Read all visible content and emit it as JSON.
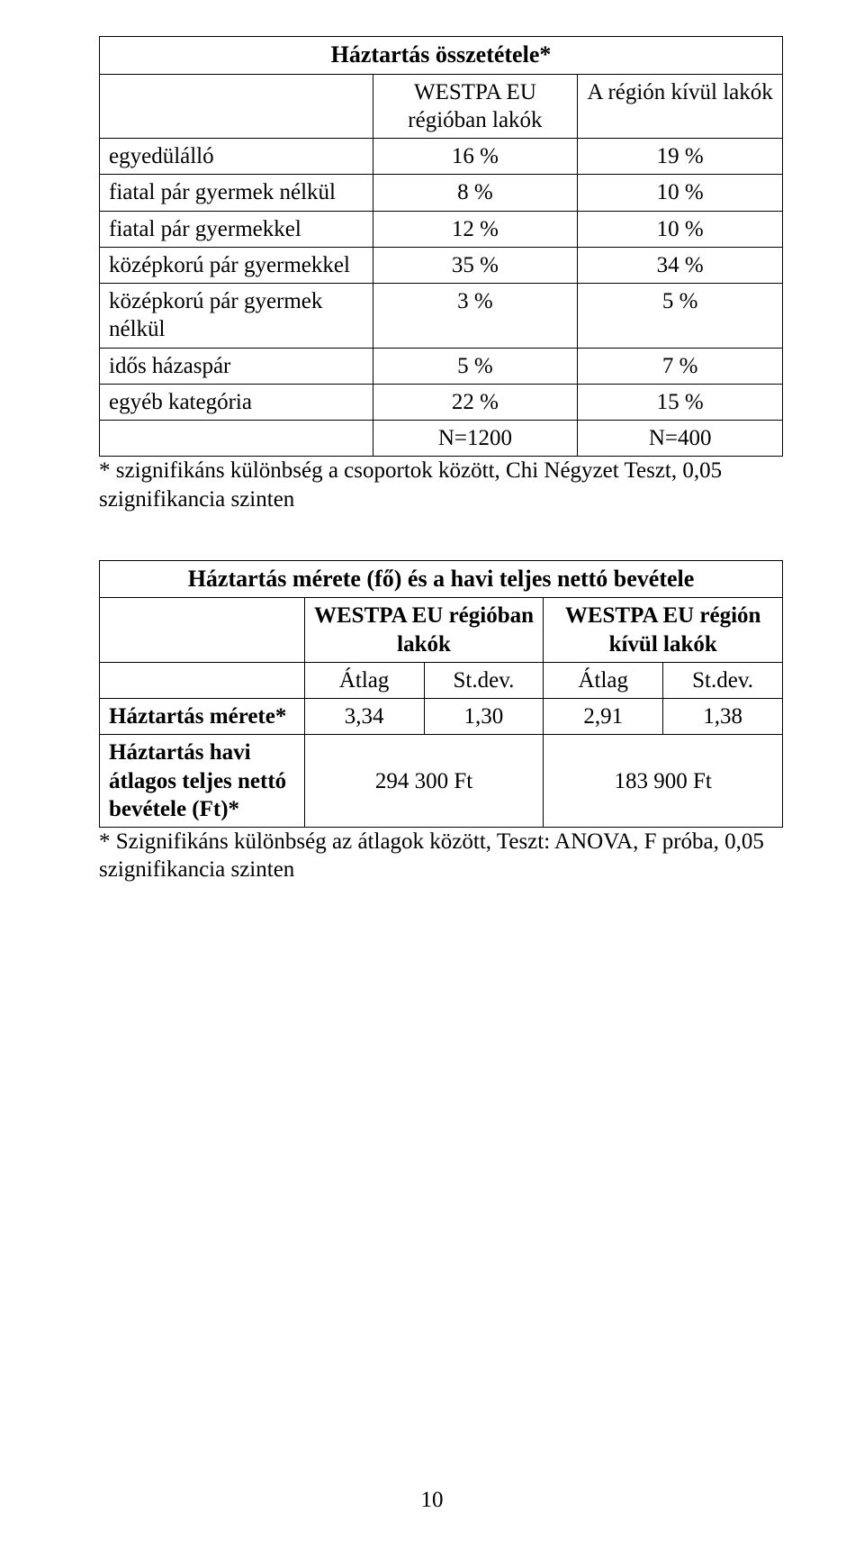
{
  "table1": {
    "title": "Háztartás összetétele*",
    "headers": {
      "col2": "WESTPA EU régióban lakók",
      "col3": "A régión kívül lakók"
    },
    "rows": [
      {
        "label": "egyedülálló",
        "v1": "16 %",
        "v2": "19 %"
      },
      {
        "label": "fiatal pár gyermek nélkül",
        "v1": "8 %",
        "v2": "10 %"
      },
      {
        "label": "fiatal pár gyermekkel",
        "v1": "12 %",
        "v2": "10 %"
      },
      {
        "label": "középkorú pár gyermekkel",
        "v1": "35 %",
        "v2": "34 %"
      },
      {
        "label": "középkorú pár gyermek nélkül",
        "v1": "3 %",
        "v2": "5 %"
      },
      {
        "label": "idős házaspár",
        "v1": "5 %",
        "v2": "7 %"
      },
      {
        "label": "egyéb kategória",
        "v1": "22 %",
        "v2": "15 %"
      }
    ],
    "totals": {
      "v1": "N=1200",
      "v2": "N=400"
    },
    "footnote": "* szignifikáns különbség a csoportok között, Chi Négyzet Teszt, 0,05 szignifikancia szinten"
  },
  "table2": {
    "title": "Háztartás mérete (fő) és a havi teljes nettó bevétele",
    "groupHeaders": {
      "g1": "WESTPA EU régióban lakók",
      "g2": "WESTPA EU régión kívül lakók"
    },
    "subHeaders": {
      "a1": "Átlag",
      "a2": "St.dev.",
      "a3": "Átlag",
      "a4": "St.dev."
    },
    "row1": {
      "label": "Háztartás mérete*",
      "v1": "3,34",
      "v2": "1,30",
      "v3": "2,91",
      "v4": "1,38"
    },
    "row2": {
      "label": "Háztartás havi átlagos teljes nettó bevétele (Ft)*",
      "m1": "294 300 Ft",
      "m2": "183 900 Ft"
    },
    "footnote": "* Szignifikáns különbség az átlagok között, Teszt: ANOVA, F próba, 0,05 szignifikancia szinten"
  },
  "pageNumber": "10"
}
